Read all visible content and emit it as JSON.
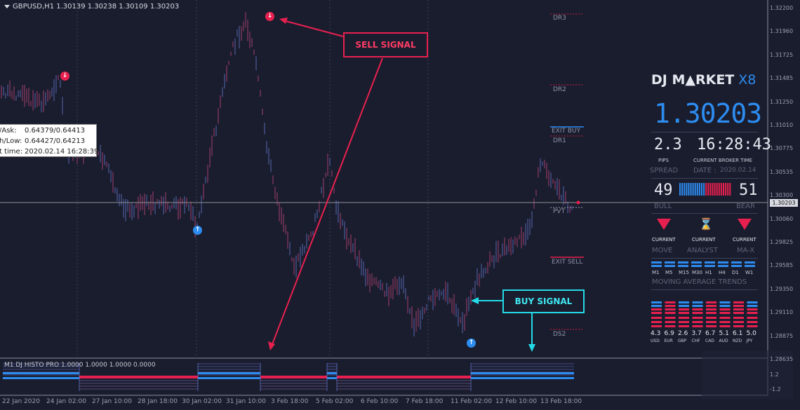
{
  "chart": {
    "symbol_line": "GBPUSD,H1  1.30139 1.30238 1.30109 1.30203",
    "current_price_tag": "1.30203",
    "y_axis": [
      "1.32200",
      "1.31960",
      "1.31725",
      "1.31485",
      "1.31250",
      "1.31010",
      "1.30775",
      "1.30535",
      "1.30300",
      "1.30060",
      "1.29825",
      "1.29585",
      "1.29350",
      "1.29110",
      "1.28875",
      "1.28635"
    ],
    "x_axis": [
      "22 Jan 2020",
      "24 Jan 02:00",
      "27 Jan 10:00",
      "28 Jan 18:00",
      "30 Jan 02:00",
      "31 Jan 10:00",
      "3 Feb 18:00",
      "5 Feb 02:00",
      "6 Feb 10:00",
      "7 Feb 18:00",
      "11 Feb 02:00",
      "12 Feb 10:00",
      "13 Feb 18:00"
    ],
    "levels": {
      "dr3": "DR3",
      "dr2": "DR2",
      "exit_buy": "EXIT BUY",
      "dr1": "DR1",
      "pvt": "PVT",
      "exit_sell": "EXIT SELL",
      "ds2": "DS2"
    },
    "sub_y_axis": [
      "1.2",
      "-1.2"
    ]
  },
  "info_box": {
    "bid_ask_label": "/Ask:",
    "bid_ask_value": "0.64379/0.64413",
    "high_low_label": "h/Low:",
    "high_low_value": "0.64427/0.64213",
    "time_label": "t time:",
    "time_value": "2020.02.14 16:28:39"
  },
  "callouts": {
    "sell": "SELL SIGNAL",
    "buy": "BUY SIGNAL"
  },
  "indicator_label": "M1 DJ HISTO PRO 1.0000 1.0000 1.0000 0.0000",
  "panel": {
    "brand_main": "DJ M▲RKET",
    "brand_x8": "X8",
    "price": "1.30203",
    "pips": "2.3",
    "pips_label": "PIPS",
    "time": "16:28:43",
    "time_label": "CURRENT BROKER TIME",
    "spread_label": "SPREAD",
    "date_label": "DATE :",
    "date_value": "2020.02.14",
    "bull_value": "49",
    "bear_value": "51",
    "bull_label": "BULL",
    "bear_label": "BEAR",
    "current_1": "CURRENT",
    "current_2": "CURRENT",
    "current_3": "CURRENT",
    "move_label": "MOVE",
    "analyst_label": "ANALYST",
    "max_label": "MA-X",
    "timeframes": [
      "M1",
      "M5",
      "M15",
      "M30",
      "H1",
      "H4",
      "D1",
      "W1"
    ],
    "ma_trends_label": "MOVING  AVERAGE  TRENDS",
    "currencies": [
      {
        "name": "USD",
        "strength": "4.3"
      },
      {
        "name": "EUR",
        "strength": "6.9"
      },
      {
        "name": "GBP",
        "strength": "2.6"
      },
      {
        "name": "CHF",
        "strength": "3.7"
      },
      {
        "name": "CAD",
        "strength": "6.7"
      },
      {
        "name": "AUD",
        "strength": "5.1"
      },
      {
        "name": "NZD",
        "strength": "6.1"
      },
      {
        "name": "JPY",
        "strength": "5.0"
      }
    ]
  },
  "colors": {
    "background": "#1a1d2e",
    "bull": "#2d8cf0",
    "bear": "#e8204f",
    "buy_callout": "#23dbe8",
    "sell_callout": "#e8204f"
  },
  "icons": {
    "signal_up": "arrow-up-circle-icon",
    "signal_down": "arrow-down-circle-icon",
    "hourglass": "hourglass-icon",
    "bear_triangle": "triangle-down-icon"
  }
}
